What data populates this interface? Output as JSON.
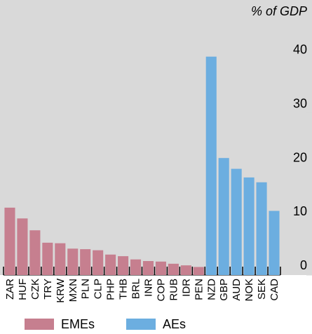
{
  "chart_data": {
    "type": "bar",
    "y_label": "% of GDP",
    "categories": [
      "ZAR",
      "HUF",
      "CZK",
      "TRY",
      "KRW",
      "MXN",
      "PLN",
      "CLP",
      "PHP",
      "THB",
      "BRL",
      "INR",
      "COP",
      "RUB",
      "IDR",
      "PEN",
      "NZD",
      "GBP",
      "AUD",
      "NOK",
      "SEK",
      "CAD"
    ],
    "series": [
      {
        "name": "EMEs",
        "color": "#c67f8f",
        "values": [
          12.5,
          10.5,
          8.3,
          6.0,
          5.9,
          4.9,
          4.8,
          4.6,
          3.8,
          3.5,
          2.9,
          2.6,
          2.5,
          2.1,
          1.8,
          1.5,
          null,
          null,
          null,
          null,
          null,
          null
        ]
      },
      {
        "name": "AEs",
        "color": "#6caee0",
        "values": [
          null,
          null,
          null,
          null,
          null,
          null,
          null,
          null,
          null,
          null,
          null,
          null,
          null,
          null,
          null,
          null,
          40.5,
          21.7,
          19.7,
          18.1,
          17.2,
          11.9
        ]
      }
    ],
    "ylim": [
      0,
      51
    ],
    "yticks": [
      0,
      10,
      20,
      30,
      40
    ],
    "legend": "bottom"
  }
}
